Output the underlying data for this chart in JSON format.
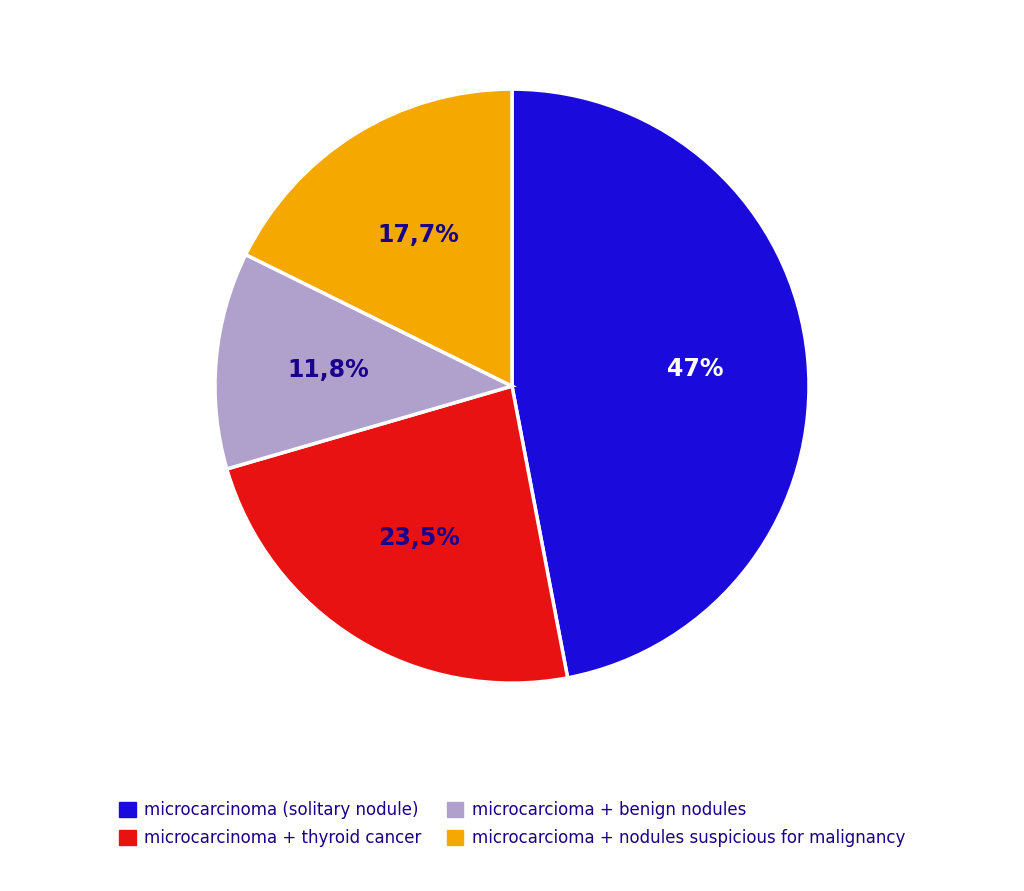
{
  "slices": [
    47.0,
    23.5,
    11.8,
    17.7
  ],
  "labels": [
    "47%",
    "23,5%",
    "11,8%",
    "17,7%"
  ],
  "colors": [
    "#1a0adb",
    "#e81212",
    "#b0a0cc",
    "#f5a800"
  ],
  "legend_labels": [
    "microcarcinoma (solitary nodule)",
    "microcarcinoma + thyroid cancer",
    "microcarcioma + benign nodules",
    "microcarcioma + nodules suspicious for malignancy"
  ],
  "legend_colors": [
    "#1a0adb",
    "#e81212",
    "#b0a0cc",
    "#f5a800"
  ],
  "label_color": "#1a0088",
  "label_fontsize": 17,
  "background_color": "#ffffff",
  "startangle": 90
}
